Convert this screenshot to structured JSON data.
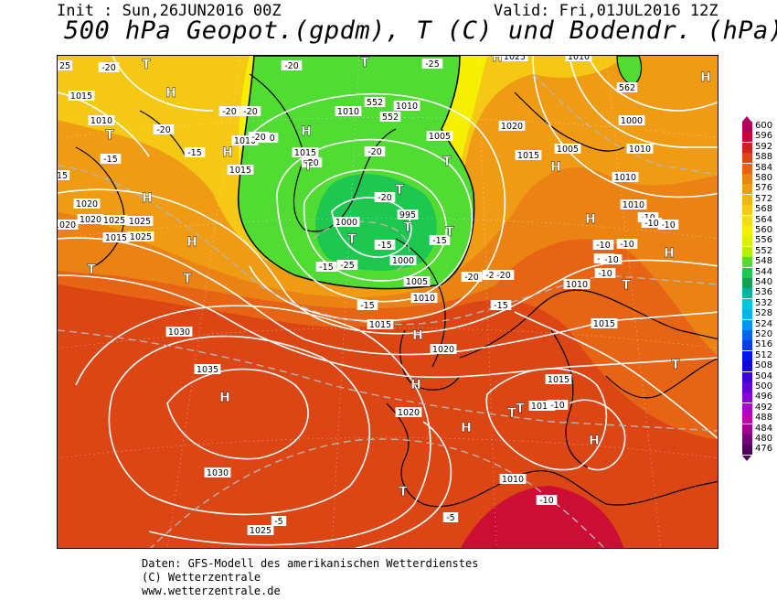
{
  "header": {
    "init": "Init : Sun,26JUN2016 00Z",
    "valid": "Valid: Fri,01JUL2016 12Z",
    "title": "500 hPa Geopot.(gpdm), T (C) und Bodendr. (hPa)"
  },
  "color_scale": {
    "labels": [
      "600",
      "596",
      "592",
      "588",
      "584",
      "580",
      "576",
      "572",
      "568",
      "564",
      "560",
      "556",
      "552",
      "548",
      "544",
      "540",
      "536",
      "532",
      "528",
      "524",
      "520",
      "516",
      "512",
      "508",
      "504",
      "500",
      "496",
      "492",
      "488",
      "484",
      "480",
      "476"
    ],
    "colors": [
      "#b4005a",
      "#c8003c",
      "#d21e1e",
      "#dc4614",
      "#e66414",
      "#eb8214",
      "#f09b14",
      "#f5b414",
      "#f5c814",
      "#f5dc14",
      "#f5f000",
      "#dcf000",
      "#b4f000",
      "#50dc32",
      "#1ec850",
      "#14a050",
      "#00b4a0",
      "#00c8dc",
      "#00b4f0",
      "#0096f0",
      "#0064f0",
      "#003cf0",
      "#0014f0",
      "#1400dc",
      "#3c00dc",
      "#6400dc",
      "#8c00dc",
      "#aa00c8",
      "#be00b4",
      "#a00096",
      "#780078",
      "#50005a"
    ]
  },
  "map": {
    "isobar_labels": [
      "1020",
      "1015",
      "1010",
      "1025",
      "1015",
      "1020",
      "1025",
      "1025",
      "1010",
      "1015",
      "1010",
      "552",
      "552",
      "1010",
      "1005",
      "1015",
      "1000",
      "995",
      "1000",
      "1005",
      "1010",
      "1015",
      "1020",
      "1025",
      "1020",
      "1010",
      "1015",
      "1005",
      "1000",
      "1010",
      "1010",
      "1010",
      "1015",
      "1030",
      "1035",
      "1020",
      "1030",
      "1025",
      "1010",
      "1015",
      "1010",
      "1020",
      "1010"
    ],
    "temp_labels": [
      "25",
      "-20",
      "-20",
      "-20",
      "-20",
      "-20",
      "-15",
      "-15",
      "-20",
      "-20",
      "-20",
      "-20",
      "-20",
      "-15",
      "-15",
      "-15",
      "-20",
      "-25",
      "-25",
      "-20",
      "-20",
      "-15",
      "-15",
      "-10",
      "-10",
      "-10",
      "-10",
      "-10",
      "-10",
      "-10",
      "-10",
      "-10",
      "-10",
      "-5",
      "-5",
      "15",
      "562"
    ],
    "pressure_centers": [
      "H",
      "H",
      "H",
      "H",
      "H",
      "H",
      "H",
      "H",
      "H",
      "H",
      "H",
      "H",
      "H",
      "H",
      "H",
      "T",
      "T",
      "T",
      "T",
      "T",
      "T",
      "T",
      "T",
      "T",
      "T",
      "T",
      "T",
      "T",
      "T",
      "T",
      "T"
    ]
  },
  "footer": {
    "line1": "Daten: GFS-Modell des amerikanischen Wetterdienstes",
    "line2": "(C) Wetterzentrale",
    "line3": "www.wetterzentrale.de"
  }
}
